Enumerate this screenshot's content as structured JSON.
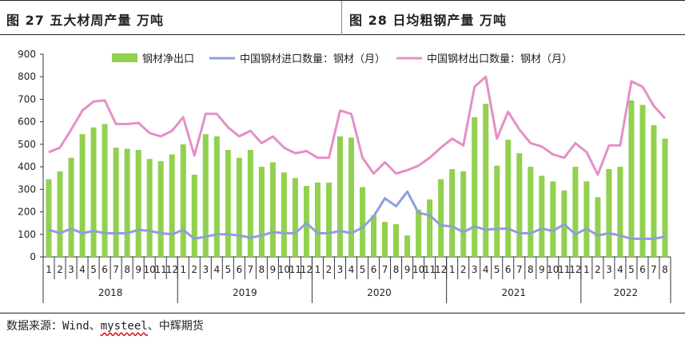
{
  "header": {
    "left_title": "图 27  五大材周产量  万吨",
    "right_title": "图 28  日均粗钢产量  万吨"
  },
  "source": {
    "prefix": "数据来源：Wind、",
    "underlined": "mysteel",
    "suffix": "、中辉期货"
  },
  "colors": {
    "net_export": "#92D050",
    "import": "#8EA0D8",
    "export": "#E58FC8"
  },
  "chart_data": {
    "type": "bar",
    "ylim": [
      0,
      900
    ],
    "yticks": [
      0,
      100,
      200,
      300,
      400,
      500,
      600,
      700,
      800,
      900
    ],
    "categories": [
      "1",
      "2",
      "3",
      "4",
      "5",
      "6",
      "7",
      "8",
      "9",
      "10",
      "11",
      "12",
      "1",
      "2",
      "3",
      "4",
      "5",
      "6",
      "7",
      "8",
      "9",
      "10",
      "11",
      "12",
      "1",
      "2",
      "3",
      "4",
      "5",
      "6",
      "7",
      "8",
      "9",
      "10",
      "11",
      "12",
      "1",
      "2",
      "3",
      "4",
      "5",
      "6",
      "7",
      "8",
      "9",
      "10",
      "11",
      "12",
      "1",
      "2",
      "3",
      "4",
      "5",
      "6",
      "7",
      "8"
    ],
    "years": [
      {
        "label": "2018",
        "start": 0,
        "count": 12
      },
      {
        "label": "2019",
        "start": 12,
        "count": 12
      },
      {
        "label": "2020",
        "start": 24,
        "count": 12
      },
      {
        "label": "2021",
        "start": 36,
        "count": 12
      },
      {
        "label": "2022",
        "start": 48,
        "count": 8
      }
    ],
    "series": [
      {
        "name": "钢材净出口",
        "type": "bar",
        "values": [
          345,
          380,
          440,
          545,
          575,
          590,
          485,
          480,
          475,
          435,
          425,
          455,
          500,
          365,
          545,
          535,
          475,
          440,
          475,
          400,
          420,
          375,
          350,
          315,
          330,
          330,
          535,
          530,
          310,
          185,
          155,
          145,
          95,
          210,
          255,
          345,
          390,
          380,
          620,
          680,
          405,
          520,
          460,
          400,
          360,
          335,
          295,
          400,
          335,
          265,
          390,
          400,
          695,
          675,
          585,
          525
        ]
      },
      {
        "name": "中国钢材进口数量：钢材（月）",
        "type": "line",
        "values": [
          120,
          105,
          125,
          105,
          115,
          105,
          105,
          105,
          120,
          115,
          105,
          100,
          120,
          80,
          90,
          100,
          100,
          95,
          85,
          95,
          110,
          105,
          105,
          150,
          105,
          105,
          115,
          105,
          130,
          180,
          260,
          225,
          290,
          195,
          185,
          140,
          135,
          110,
          135,
          120,
          125,
          125,
          105,
          105,
          125,
          115,
          145,
          100,
          125,
          95,
          105,
          95,
          80,
          80,
          80,
          90
        ]
      },
      {
        "name": "中国钢材出口数量：钢材（月）",
        "type": "line",
        "values": [
          465,
          485,
          565,
          650,
          690,
          695,
          590,
          590,
          595,
          550,
          535,
          560,
          620,
          450,
          635,
          635,
          575,
          535,
          560,
          505,
          535,
          485,
          460,
          470,
          440,
          440,
          650,
          635,
          440,
          370,
          420,
          370,
          385,
          405,
          440,
          485,
          525,
          495,
          755,
          800,
          525,
          645,
          565,
          505,
          490,
          455,
          440,
          505,
          465,
          365,
          495,
          495,
          780,
          755,
          670,
          615
        ]
      }
    ]
  }
}
